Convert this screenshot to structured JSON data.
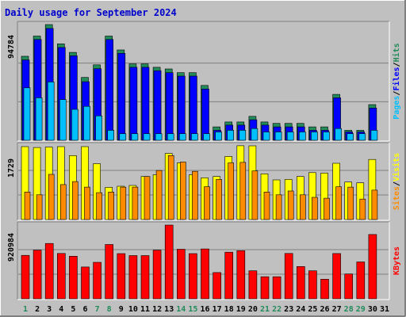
{
  "chart_data": {
    "type": "bar",
    "title": "Daily usage for September 2024",
    "categories": [
      "1",
      "2",
      "3",
      "4",
      "5",
      "6",
      "7",
      "8",
      "9",
      "10",
      "11",
      "12",
      "13",
      "14",
      "15",
      "16",
      "17",
      "18",
      "19",
      "20",
      "21",
      "22",
      "23",
      "24",
      "25",
      "26",
      "27",
      "28",
      "29",
      "30",
      "31"
    ],
    "weekend_days": [
      "1",
      "7",
      "8",
      "14",
      "15",
      "21",
      "22",
      "28",
      "29"
    ],
    "panels": [
      {
        "id": "pages-files-hits",
        "max_label": "94784",
        "ymax": 94784,
        "axis_label": "Pages / Files / Hits",
        "series": [
          {
            "name": "Hits",
            "color": "#228b5a",
            "values": [
              68800,
              85400,
              94784,
              79000,
              72000,
              51500,
              61800,
              85400,
              74000,
              62600,
              62600,
              59800,
              58400,
              55400,
              55400,
              44900,
              11000,
              15000,
              15000,
              19600,
              15000,
              13800,
              13800,
              13800,
              11000,
              11000,
              37600,
              8200,
              8200,
              29200,
              0
            ]
          },
          {
            "name": "Files",
            "color": "#0000ff",
            "values": [
              65800,
              82600,
              91600,
              76000,
              69200,
              48000,
              58600,
              82600,
              71200,
              59800,
              59800,
              57000,
              55400,
              52600,
              52600,
              42000,
              8200,
              12400,
              12400,
              16800,
              12400,
              11000,
              11000,
              11000,
              8200,
              8200,
              34800,
              6800,
              6800,
              26400,
              0
            ]
          },
          {
            "name": "Pages",
            "color": "#00bfff",
            "values": [
              43000,
              34800,
              47800,
              33400,
              25300,
              27800,
              20000,
              8200,
              5400,
              5400,
              5400,
              5400,
              5400,
              5400,
              5400,
              5400,
              6800,
              8200,
              8200,
              9600,
              6800,
              6800,
              6800,
              6800,
              6800,
              6800,
              9600,
              5400,
              5400,
              8200,
              0
            ]
          }
        ]
      },
      {
        "id": "visits-sites",
        "max_label": "1729",
        "ymax": 1729,
        "axis_label": "Sites / Visits",
        "series": [
          {
            "name": "Visits",
            "color": "#ffff00",
            "values": [
              1710,
              1690,
              1700,
              1710,
              1500,
              1710,
              1310,
              755,
              780,
              800,
              1010,
              1050,
              1550,
              1330,
              1050,
              980,
              1010,
              1480,
              1730,
              1729,
              1070,
              930,
              940,
              1010,
              1100,
              1090,
              1320,
              880,
              860,
              1410,
              0
            ]
          },
          {
            "name": "Sites",
            "color": "#ff8c00",
            "values": [
              645,
              580,
              1060,
              820,
              890,
              760,
              630,
              645,
              760,
              760,
              1010,
              1150,
              1500,
              1350,
              1130,
              770,
              940,
              1330,
              1340,
              1140,
              645,
              580,
              670,
              580,
              520,
              500,
              770,
              760,
              480,
              690,
              0
            ]
          }
        ]
      },
      {
        "id": "kbytes",
        "max_label": "920984",
        "ymax": 920984,
        "axis_label": "KBytes",
        "series": [
          {
            "name": "KBytes",
            "color": "#ff0000",
            "values": [
              543000,
              608000,
              691000,
              566000,
              532000,
              397000,
              456000,
              678000,
              564000,
              540000,
              540000,
              608000,
              920984,
              619000,
              564000,
              623000,
              328000,
              582000,
              601000,
              350000,
              275000,
              275000,
              566000,
              403000,
              350000,
              245000,
              565000,
              310000,
              460000,
              803000,
              0
            ]
          }
        ]
      }
    ]
  }
}
